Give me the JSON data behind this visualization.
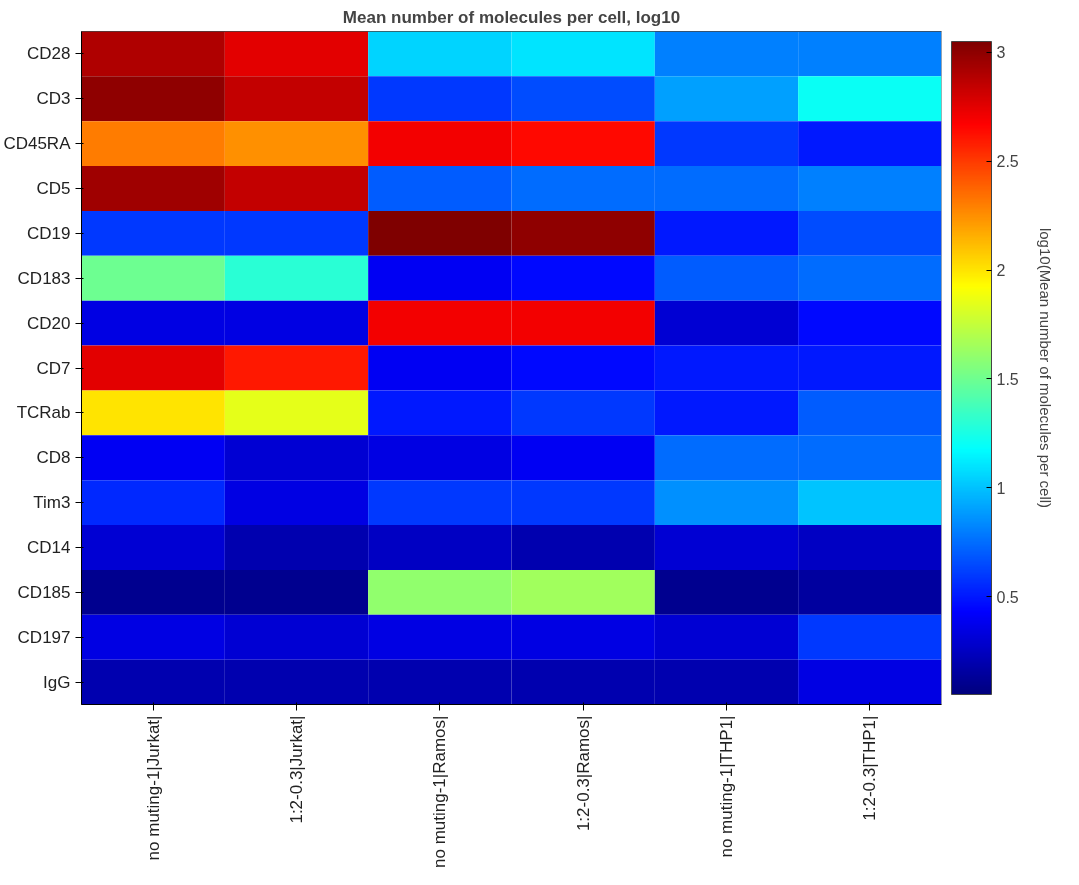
{
  "chart_data": {
    "type": "heatmap",
    "title": "Mean number of molecules per cell, log10",
    "clabel": "log10(Mean number of molecules per cell)",
    "categories": [
      "no muting-1|Jurkat|",
      "1:2-0.3|Jurkat|",
      "no muting-1|Ramos|",
      "1:2-0.3|Ramos|",
      "no muting-1|THP1|",
      "1:2-0.3|THP1|"
    ],
    "y_categories": [
      "CD28",
      "CD3",
      "CD45RA",
      "CD5",
      "CD19",
      "CD183",
      "CD20",
      "CD7",
      "TCRab",
      "CD8",
      "Tim3",
      "CD14",
      "CD185",
      "CD197",
      "IgG"
    ],
    "cells": [
      [
        2.9,
        2.75,
        1.05,
        1.1,
        0.8,
        0.8
      ],
      [
        3.0,
        2.85,
        0.6,
        0.65,
        0.9,
        1.2
      ],
      [
        2.3,
        2.25,
        2.7,
        2.65,
        0.6,
        0.5
      ],
      [
        2.95,
        2.85,
        0.7,
        0.75,
        0.75,
        0.8
      ],
      [
        0.6,
        0.6,
        3.05,
        3.0,
        0.5,
        0.65
      ],
      [
        1.5,
        1.3,
        0.4,
        0.45,
        0.7,
        0.75
      ],
      [
        0.35,
        0.35,
        2.7,
        2.7,
        0.3,
        0.45
      ],
      [
        2.75,
        2.6,
        0.4,
        0.45,
        0.5,
        0.5
      ],
      [
        2.0,
        1.85,
        0.5,
        0.6,
        0.5,
        0.7
      ],
      [
        0.4,
        0.3,
        0.35,
        0.4,
        0.75,
        0.75
      ],
      [
        0.55,
        0.35,
        0.6,
        0.6,
        0.85,
        1.0
      ],
      [
        0.3,
        0.2,
        0.25,
        0.2,
        0.3,
        0.25
      ],
      [
        0.1,
        0.1,
        1.6,
        1.65,
        0.1,
        0.15
      ],
      [
        0.35,
        0.3,
        0.35,
        0.35,
        0.3,
        0.6
      ],
      [
        0.2,
        0.2,
        0.2,
        0.2,
        0.2,
        0.35
      ]
    ],
    "clim": [
      0.05,
      3.05
    ],
    "cticks": [
      0.5,
      1,
      1.5,
      2,
      2.5,
      3
    ],
    "grid": false
  }
}
